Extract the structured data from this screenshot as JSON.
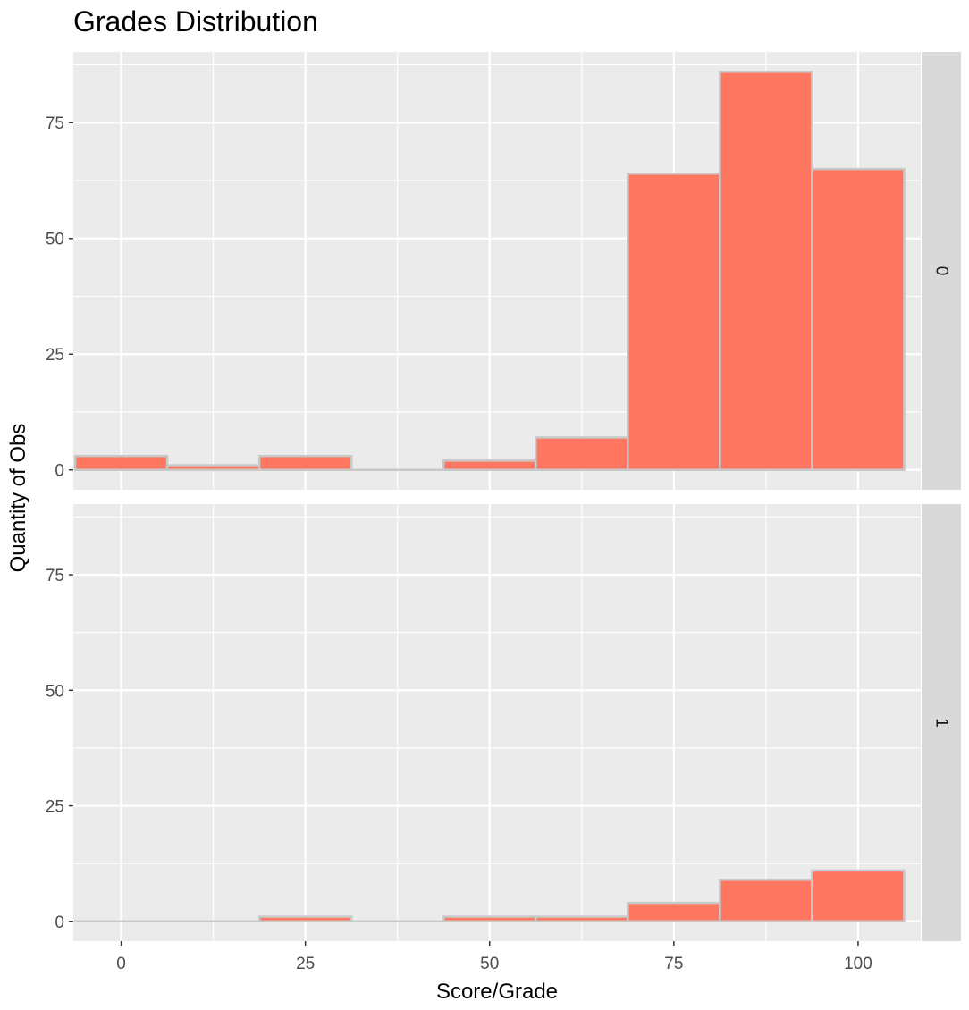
{
  "chart_data": {
    "type": "bar",
    "title": "Grades Distribution",
    "xlabel": "Score/Grade",
    "ylabel": "Quantity of Obs",
    "xlim": [
      -6.5,
      108.5
    ],
    "ylim": [
      -4.3,
      90.3
    ],
    "x_ticks": [
      0,
      25,
      50,
      75,
      100
    ],
    "y_ticks": [
      0,
      25,
      50,
      75
    ],
    "bin_width": 12.5,
    "bin_centers": [
      0,
      12.5,
      25,
      37.5,
      50,
      62.5,
      75,
      87.5,
      100
    ],
    "grid": true,
    "colors": {
      "bar_fill": "#FF7760",
      "bar_border": "#C8C8C8",
      "panel_bg": "#EBEBEB",
      "strip_bg": "#D9D9D9"
    },
    "panels": [
      {
        "label": "0",
        "values": [
          3,
          1,
          3,
          0,
          2,
          7,
          64,
          86,
          65
        ]
      },
      {
        "label": "1",
        "values": [
          0,
          0,
          1,
          0,
          1,
          1,
          4,
          9,
          11
        ]
      }
    ]
  }
}
